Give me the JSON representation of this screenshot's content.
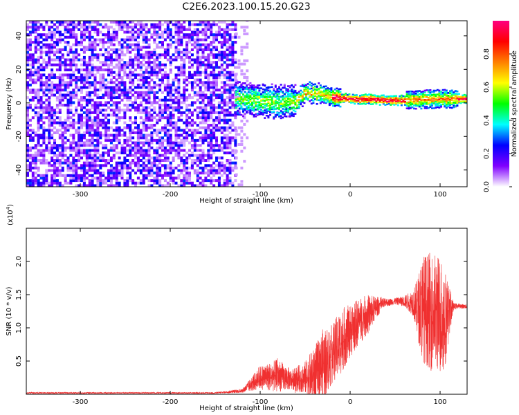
{
  "title": "C2E6.2023.100.15.20.G23",
  "chart_data": [
    {
      "type": "heatmap",
      "title": "C2E6.2023.100.15.20.G23",
      "xlabel": "Height of straight line (km)",
      "ylabel": "Frequency (Hz)",
      "xlim": [
        -360,
        130
      ],
      "ylim": [
        -50,
        49
      ],
      "x_ticks": [
        -300,
        -200,
        -100,
        0,
        100
      ],
      "y_ticks": [
        -40,
        -20,
        0,
        20,
        40
      ],
      "grid": false,
      "colorbar": {
        "label": "Normalized spectral amplitude",
        "range": [
          0,
          1
        ],
        "ticks": [
          "0.0",
          "0.2",
          "0.4",
          "0.6",
          "0.8"
        ],
        "colormap": [
          "#ffffff",
          "#8000ff",
          "#0000ff",
          "#00ffff",
          "#00ff00",
          "#ffff00",
          "#ff8000",
          "#ff0000",
          "#ff0080"
        ]
      },
      "regions": [
        {
          "x_start": -360,
          "x_end": -128,
          "description": "broadband noise, amplitude 0.1-0.3"
        },
        {
          "x_start": -128,
          "x_end": 130,
          "description": "narrow signal band near 0 Hz, amplitude rising to ~0.9"
        }
      ],
      "signal_center_hz": [
        {
          "x": -120,
          "y": 2
        },
        {
          "x": -80,
          "y": 0
        },
        {
          "x": -60,
          "y": 1
        },
        {
          "x": -50,
          "y": 6
        },
        {
          "x": -35,
          "y": 5
        },
        {
          "x": -20,
          "y": 3
        },
        {
          "x": 0,
          "y": 2
        },
        {
          "x": 50,
          "y": 1
        },
        {
          "x": 100,
          "y": 2
        },
        {
          "x": 130,
          "y": 2
        }
      ]
    },
    {
      "type": "line",
      "xlabel": "Height of straight line (km)",
      "ylabel": "SNR (10 * v/v)",
      "y_multiplier": "(x10^4)",
      "y_multiplier_base": "(x10",
      "y_multiplier_exp": "4",
      "y_multiplier_close": ")",
      "xlim": [
        -360,
        130
      ],
      "ylim": [
        0,
        2.5
      ],
      "x_ticks": [
        -300,
        -200,
        -100,
        0,
        100
      ],
      "y_ticks": [
        "0.5",
        "1.0",
        "1.5",
        "2.0"
      ],
      "color": "#f03030",
      "series": [
        {
          "envelope_x": [
            -360,
            -150,
            -120,
            -100,
            -80,
            -65,
            -50,
            -40,
            -30,
            -20,
            -10,
            0,
            10,
            20,
            30,
            40,
            50,
            60,
            70,
            75,
            80,
            90,
            100,
            105,
            110,
            115,
            120,
            130
          ],
          "envelope_mean": [
            0.02,
            0.02,
            0.05,
            0.25,
            0.28,
            0.22,
            0.25,
            0.3,
            0.45,
            0.6,
            0.8,
            0.95,
            1.1,
            1.2,
            1.32,
            1.38,
            1.4,
            1.4,
            1.38,
            1.3,
            1.3,
            1.25,
            1.2,
            1.15,
            1.25,
            1.32,
            1.33,
            1.32
          ],
          "envelope_amp": [
            0.01,
            0.01,
            0.03,
            0.18,
            0.25,
            0.15,
            0.25,
            0.4,
            0.55,
            0.45,
            0.5,
            0.4,
            0.35,
            0.3,
            0.15,
            0.06,
            0.05,
            0.08,
            0.2,
            0.45,
            0.8,
            0.9,
            0.9,
            0.8,
            0.4,
            0.05,
            0.04,
            0.03
          ]
        }
      ]
    }
  ]
}
